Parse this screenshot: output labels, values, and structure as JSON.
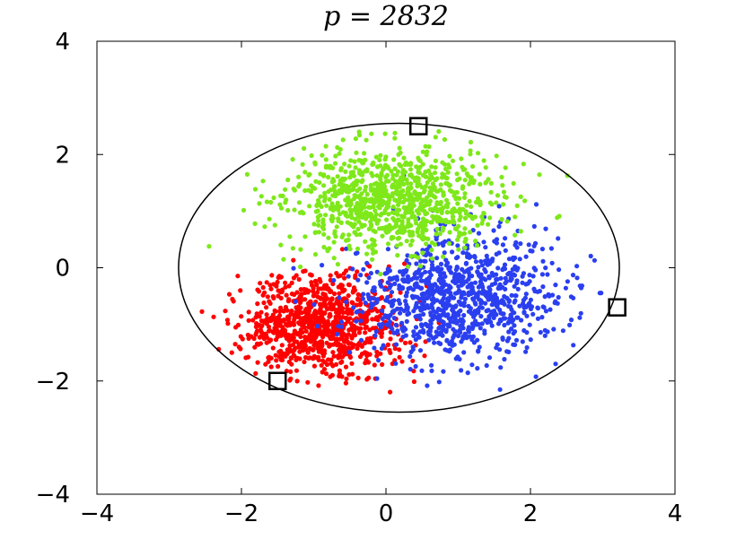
{
  "chart_data": {
    "type": "scatter",
    "title": "p = 2832",
    "xlabel": "",
    "ylabel": "",
    "xlim": [
      -4,
      4
    ],
    "ylim": [
      -4,
      4
    ],
    "x_ticks": [
      -4,
      -2,
      0,
      2,
      4
    ],
    "y_ticks": [
      -4,
      -2,
      0,
      2,
      4
    ],
    "x_tick_labels": [
      "−4",
      "−2",
      "0",
      "2",
      "4"
    ],
    "y_tick_labels": [
      "−4",
      "−2",
      "0",
      "2",
      "4"
    ],
    "grid": false,
    "legend": "none",
    "point_counts_approx": [
      944,
      944,
      944
    ],
    "series": [
      {
        "color": "#ff0000",
        "center": [
          -0.9,
          -1.0
        ],
        "spread": [
          0.55,
          0.45
        ]
      },
      {
        "color": "#2a3ff0",
        "center": [
          1.0,
          -0.5
        ],
        "spread": [
          0.7,
          0.55
        ]
      },
      {
        "color": "#7ee81a",
        "center": [
          0.1,
          1.2
        ],
        "spread": [
          0.75,
          0.45
        ]
      }
    ],
    "ellipse": {
      "center": [
        0.18,
        0.0
      ],
      "semi_axes": [
        3.05,
        2.55
      ],
      "color": "#000000"
    },
    "highlighted_points": [
      [
        0.45,
        2.5
      ],
      [
        3.2,
        -0.7
      ],
      [
        -1.5,
        -2.0
      ]
    ]
  }
}
